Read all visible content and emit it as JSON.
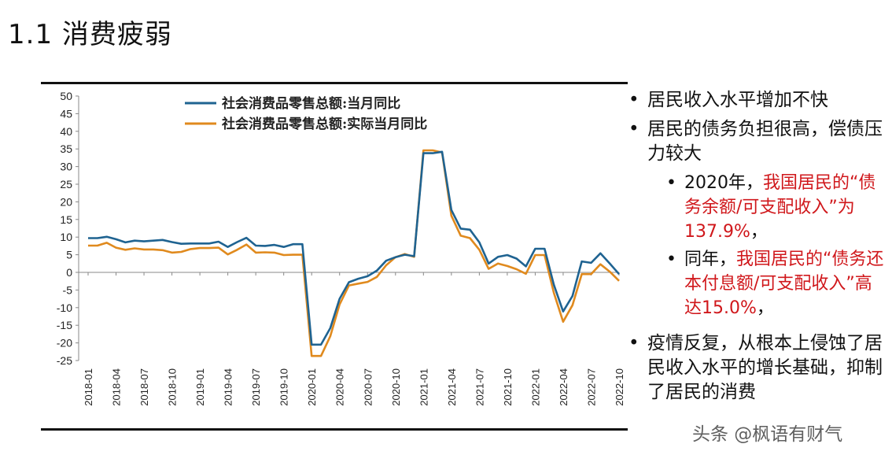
{
  "title": "1.1  消费疲弱",
  "chart_data": {
    "type": "line",
    "title": "",
    "xlabel": "",
    "ylabel": "",
    "ylim": [
      -25,
      50
    ],
    "yticks": [
      50,
      45,
      40,
      35,
      30,
      25,
      20,
      15,
      10,
      5,
      0,
      -5,
      -10,
      -15,
      -20,
      -25
    ],
    "x_tick_labels": [
      "2018-01",
      "2018-04",
      "2018-07",
      "2018-10",
      "2019-01",
      "2019-04",
      "2019-07",
      "2019-10",
      "2020-01",
      "2020-04",
      "2020-07",
      "2020-10",
      "2021-01",
      "2021-04",
      "2021-07",
      "2021-10",
      "2022-01",
      "2022-04",
      "2022-07",
      "2022-10"
    ],
    "legend_position": "top-center",
    "series": [
      {
        "name": "社会消费品零售总额:当月同比",
        "color": "#1f6391",
        "values": [
          9.7,
          9.7,
          10.1,
          9.4,
          8.5,
          9.0,
          8.8,
          9.0,
          9.2,
          8.6,
          8.1,
          8.2,
          8.2,
          8.2,
          8.7,
          7.2,
          8.6,
          9.8,
          7.6,
          7.5,
          7.8,
          7.2,
          8.0,
          8.0,
          -20.5,
          -20.5,
          -15.8,
          -7.5,
          -2.8,
          -1.8,
          -1.1,
          0.5,
          3.3,
          4.3,
          5.0,
          4.6,
          33.8,
          33.8,
          34.2,
          17.7,
          12.4,
          12.1,
          8.5,
          2.5,
          4.4,
          4.9,
          3.9,
          1.7,
          6.7,
          6.7,
          -3.5,
          -11.1,
          -6.7,
          3.1,
          2.7,
          5.4,
          2.5,
          -0.5
        ]
      },
      {
        "name": "社会消费品零售总额:实际当月同比",
        "color": "#e08a1e",
        "values": [
          7.6,
          7.6,
          8.4,
          7.0,
          6.4,
          6.8,
          6.5,
          6.5,
          6.3,
          5.6,
          5.8,
          6.6,
          6.9,
          6.9,
          7.0,
          5.1,
          6.4,
          7.9,
          5.6,
          5.7,
          5.6,
          4.9,
          5.0,
          5.0,
          -23.7,
          -23.7,
          -18.1,
          -9.1,
          -3.7,
          -3.2,
          -2.7,
          -1.3,
          2.0,
          4.3,
          5.2,
          4.4,
          34.6,
          34.6,
          34.0,
          16.1,
          10.4,
          9.7,
          6.4,
          1.0,
          2.5,
          1.8,
          0.9,
          -0.4,
          4.9,
          4.9,
          -5.8,
          -14.0,
          -9.3,
          -0.5,
          -0.5,
          2.3,
          0.2,
          -2.4
        ]
      }
    ]
  },
  "bullets": {
    "b1": "居民收入水平增加不快",
    "b2": "居民的债务负担很高，偿债压力较大",
    "sub1_black": "2020年，",
    "sub1_red": "我国居民的“债务余额/可支配收入”为137.9%",
    "sub1_end": "，",
    "sub2_black": "同年，",
    "sub2_red": "我国居民的“债务还本付息额/可支配收入”高达15.0%",
    "sub2_end": "，",
    "b3": "疫情反复，从根本上侵蚀了居民收入水平的增长基础，抑制了居民的消费"
  },
  "watermark": "头条 @枫语有财气"
}
